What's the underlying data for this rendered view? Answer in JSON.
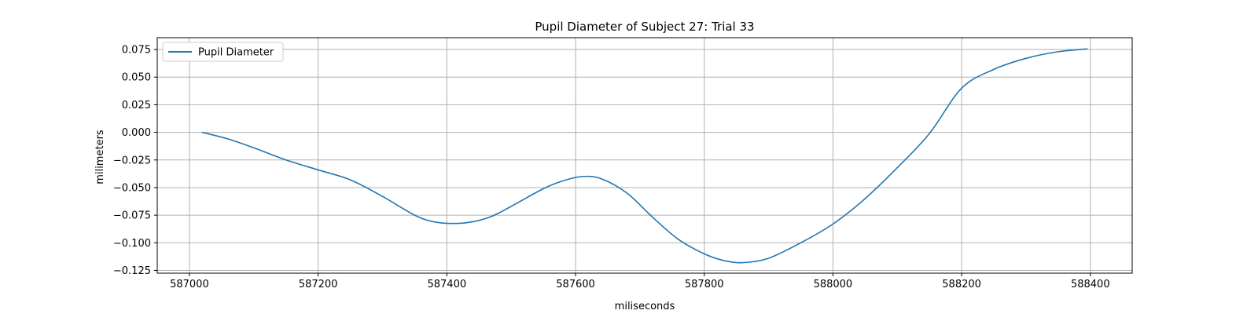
{
  "chart_data": {
    "type": "line",
    "title": "Pupil Diameter of Subject 27: Trial 33",
    "xlabel": "miliseconds",
    "ylabel": "milimeters",
    "xlim": [
      586950,
      588465
    ],
    "ylim": [
      -0.1275,
      0.0857
    ],
    "xticks": [
      587000,
      587200,
      587400,
      587600,
      587800,
      588000,
      588200,
      588400
    ],
    "yticks": [
      0.075,
      0.05,
      0.025,
      0.0,
      -0.025,
      -0.05,
      -0.075,
      -0.1,
      -0.125
    ],
    "xtick_labels": [
      "587000",
      "587200",
      "587400",
      "587600",
      "587800",
      "588000",
      "588200",
      "588400"
    ],
    "ytick_labels": [
      "0.075",
      "0.050",
      "0.025",
      "0.000",
      "−0.025",
      "−0.050",
      "−0.075",
      "−0.100",
      "−0.125"
    ],
    "grid": true,
    "legend_position": "top-left",
    "series": [
      {
        "name": "Pupil Diameter",
        "color": "#1f77b4",
        "x": [
          587020,
          587060,
          587100,
          587150,
          587200,
          587250,
          587300,
          587350,
          587380,
          587410,
          587440,
          587470,
          587500,
          587550,
          587580,
          587610,
          587640,
          587680,
          587720,
          587760,
          587800,
          587830,
          587860,
          587900,
          587950,
          588000,
          588050,
          588100,
          588150,
          588200,
          588250,
          588300,
          588350,
          588395
        ],
        "y": [
          0.0,
          -0.006,
          -0.014,
          -0.025,
          -0.034,
          -0.043,
          -0.058,
          -0.075,
          -0.081,
          -0.0825,
          -0.081,
          -0.076,
          -0.067,
          -0.051,
          -0.044,
          -0.04,
          -0.042,
          -0.055,
          -0.077,
          -0.097,
          -0.11,
          -0.116,
          -0.118,
          -0.114,
          -0.1,
          -0.083,
          -0.06,
          -0.032,
          -0.001,
          0.04,
          0.057,
          0.067,
          0.073,
          0.0755
        ]
      }
    ]
  }
}
